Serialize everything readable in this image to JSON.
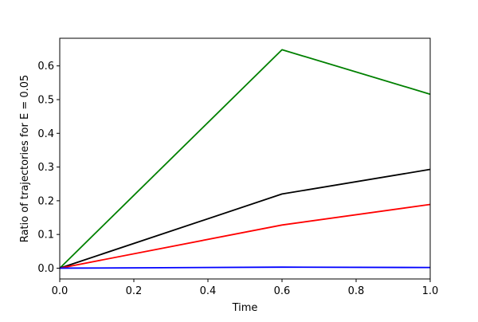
{
  "chart_data": {
    "type": "line",
    "title": "",
    "xlabel": "Time",
    "ylabel": "Ratio of trajectories for E = 0.05",
    "xlim": [
      0.0,
      1.0
    ],
    "ylim": [
      -0.032,
      0.682
    ],
    "xticks": [
      0.0,
      0.2,
      0.4,
      0.6,
      0.8,
      1.0
    ],
    "xtick_labels": [
      "0.0",
      "0.2",
      "0.4",
      "0.6",
      "0.8",
      "1.0"
    ],
    "yticks": [
      0.0,
      0.1,
      0.2,
      0.3,
      0.4,
      0.5,
      0.6
    ],
    "ytick_labels": [
      "0.0",
      "0.1",
      "0.2",
      "0.3",
      "0.4",
      "0.5",
      "0.6"
    ],
    "grid": false,
    "legend": "none",
    "x": [
      0.0,
      0.6,
      1.0
    ],
    "series": [
      {
        "color": "#008000",
        "values": [
          0.0,
          0.648,
          0.516
        ]
      },
      {
        "color": "#000000",
        "values": [
          0.0,
          0.22,
          0.293
        ]
      },
      {
        "color": "#ff0000",
        "values": [
          0.0,
          0.128,
          0.189
        ]
      },
      {
        "color": "#0000ff",
        "values": [
          0.0,
          0.003,
          0.002
        ]
      }
    ]
  }
}
